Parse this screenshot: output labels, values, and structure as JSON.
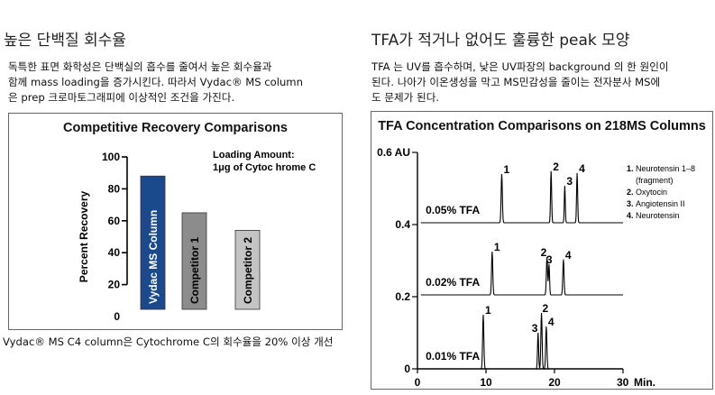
{
  "left": {
    "heading": "높은 단백질 회수율",
    "paragraph": [
      "독특한 표면 화학성은 단백실의 흡수를 줄여서 높은 회수율과",
      "함께 mass loading을 증가시킨다. 따라서 Vydac® MS column",
      "은 prep 크로마토그래피에 이상적인 조건을 가진다."
    ],
    "caption": "Vydac® MS C4 column은 Cytochrome C의 회수율을 20% 이상 개선"
  },
  "right": {
    "heading": "TFA가 적거나 없어도 훌륭한 peak 모양",
    "paragraph": [
      "TFA 는 UV를 흡수하며, 낮은 UV파장의 background 의 한 원인이",
      "된다. 나아가 이온생성을 막고 MS민감성을 줄이는 전자분사 MS에",
      "도 문제가 된다."
    ]
  },
  "colors": {
    "vydac": "#1a4a8c",
    "competitor1": "#8c8c8c",
    "competitor2": "#c4c4c4",
    "ink": "#000000"
  },
  "chart_data": [
    {
      "type": "bar",
      "title": "Competitive Recovery Comparisons",
      "ylabel": "Percent Recovery",
      "ylim": [
        0,
        100
      ],
      "yticks": [
        0,
        20,
        40,
        60,
        80,
        100
      ],
      "ytick_labels": [
        "0",
        "20",
        "40",
        "60",
        "80",
        "100"
      ],
      "categories": [
        "Vydac MS Column",
        "Competitor 1",
        "Competitor 2"
      ],
      "values": [
        88,
        65,
        54
      ],
      "annotation": [
        "Loading Amount:",
        "1μg of Cytoc hrome C"
      ],
      "grid": false
    },
    {
      "type": "line",
      "title": "TFA Concentration Comparisons on 218MS Columns",
      "xlabel": "Min.",
      "xlim": [
        0,
        30
      ],
      "xticks": [
        0,
        10,
        20,
        30
      ],
      "ylim": [
        0,
        0.6
      ],
      "yticks": [
        0,
        0.2,
        0.4,
        0.6
      ],
      "ytick_labels": [
        "0",
        "0.2",
        "0.4",
        "0.6 AU"
      ],
      "legend": [
        {
          "num": "1.",
          "text": "Neurotensin 1–8"
        },
        {
          "num": "",
          "text": "(fragment)"
        },
        {
          "num": "2.",
          "text": "Oxytocin"
        },
        {
          "num": "3.",
          "text": "Angiotensin II"
        },
        {
          "num": "4.",
          "text": "Neurotensin"
        }
      ],
      "legend_position": "top-right",
      "series": [
        {
          "name": "0.05% TFA",
          "baseline": 0.405,
          "peaks": [
            {
              "label": "1",
              "rt": 12.3,
              "height": 0.135,
              "width": 0.25
            },
            {
              "label": "2",
              "rt": 19.5,
              "height": 0.143,
              "width": 0.22
            },
            {
              "label": "3",
              "rt": 21.5,
              "height": 0.102,
              "width": 0.2
            },
            {
              "label": "4",
              "rt": 23.3,
              "height": 0.138,
              "width": 0.22
            }
          ]
        },
        {
          "name": "0.02% TFA",
          "baseline": 0.205,
          "peaks": [
            {
              "label": "1",
              "rt": 10.9,
              "height": 0.12,
              "width": 0.25
            },
            {
              "label": "2",
              "rt": 18.9,
              "height": 0.105,
              "width": 0.25
            },
            {
              "label": "3",
              "rt": 19.2,
              "height": 0.085,
              "width": 0.22
            },
            {
              "label": "4",
              "rt": 21.3,
              "height": 0.098,
              "width": 0.25
            }
          ]
        },
        {
          "name": "0.01% TFA",
          "baseline": 0.0,
          "peaks": [
            {
              "label": "1",
              "rt": 9.6,
              "height": 0.15,
              "width": 0.25
            },
            {
              "label": "3",
              "rt": 17.6,
              "height": 0.1,
              "width": 0.22
            },
            {
              "label": "2",
              "rt": 18.1,
              "height": 0.155,
              "width": 0.25
            },
            {
              "label": "4",
              "rt": 18.8,
              "height": 0.117,
              "width": 0.25
            }
          ]
        }
      ]
    }
  ]
}
